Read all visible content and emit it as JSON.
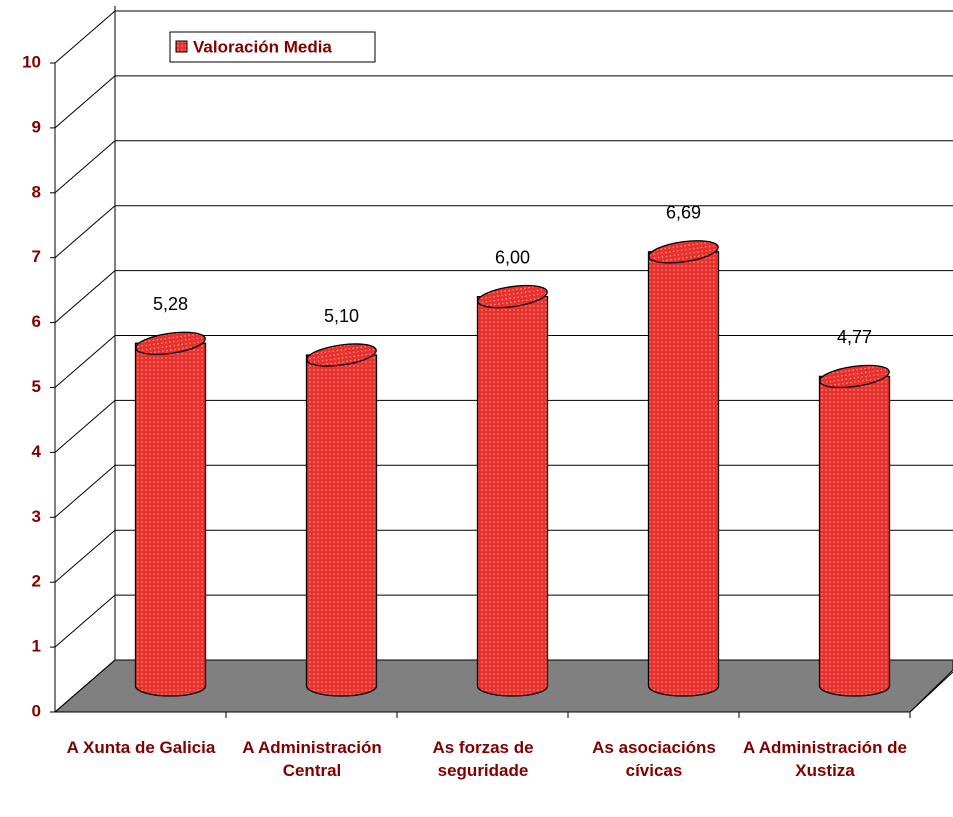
{
  "chart_data": {
    "type": "bar3d",
    "categories": [
      "A Xunta de Galicia",
      "A Administración Central",
      "As forzas de seguridade",
      "As asociacións cívicas",
      "A Administración de Xustiza"
    ],
    "series": [
      {
        "name": "Valoración Media",
        "color": "#e8302c",
        "values": [
          5.28,
          5.1,
          6.0,
          6.69,
          4.77
        ],
        "value_labels": [
          "5,28",
          "5,10",
          "6,00",
          "6,69",
          "4,77"
        ]
      }
    ],
    "ylim": [
      0,
      10
    ],
    "yticks": [
      0,
      1,
      2,
      3,
      4,
      5,
      6,
      7,
      8,
      9,
      10
    ],
    "grid": true,
    "legend": "top-left"
  }
}
